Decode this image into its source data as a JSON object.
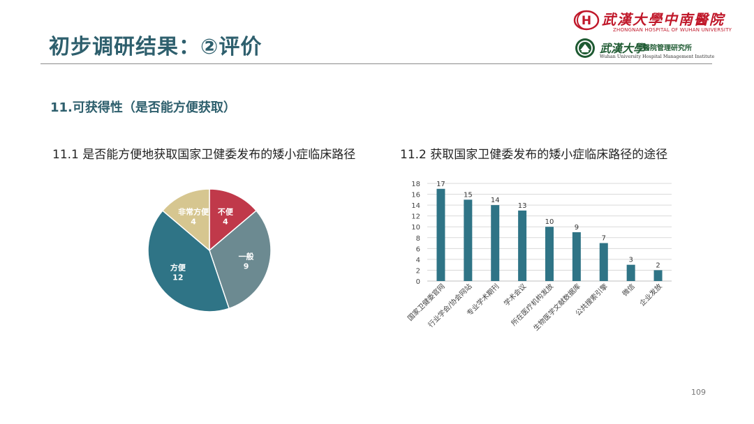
{
  "slide": {
    "title": "初步调研结果：②评价",
    "section_heading": "11.可获得性（是否能方便获取）",
    "sub1_heading": "11.1 是否能方便地获取国家卫健委发布的矮小症临床路径",
    "sub2_heading": "11.2 获取国家卫健委发布的矮小症临床路径的途径",
    "page_number": "109"
  },
  "logos": {
    "hospital_name": "武漢大學中南醫院",
    "hospital_en": "ZHONGNAN HOSPITAL OF WUHAN UNIVERSITY",
    "hospital_mark": "H",
    "institute_name": "武漢大學",
    "institute_sub": "醫院管理研究所",
    "institute_en": "Wuhan University Hospital Management Institute"
  },
  "colors": {
    "title": "#2e5f6d",
    "bar": "#2f7486",
    "pie_red": "#c0394a",
    "pie_gray": "#6c8a91",
    "pie_teal": "#2f7486",
    "pie_tan": "#d6c690",
    "logo_red": "#c0182a",
    "logo_green": "#1e5a32"
  },
  "chart_data": [
    {
      "type": "pie",
      "title": "",
      "slices": [
        {
          "label": "不便",
          "value": 4,
          "color": "#c0394a"
        },
        {
          "label": "一般",
          "value": 9,
          "color": "#6c8a91"
        },
        {
          "label": "方便",
          "value": 12,
          "color": "#2f7486"
        },
        {
          "label": "非常方便",
          "value": 4,
          "color": "#d6c690"
        }
      ]
    },
    {
      "type": "bar",
      "title": "",
      "categories": [
        "国家卫健委官网",
        "行业学会/协会网站",
        "专业学术期刊",
        "学术会议",
        "所在医疗机构发放",
        "生物医学文献数据库",
        "公共搜索引擎",
        "微信",
        "企业发放"
      ],
      "values": [
        17,
        15,
        14,
        13,
        10,
        9,
        7,
        3,
        2
      ],
      "ylim": [
        0,
        18
      ],
      "yticks": [
        0,
        2,
        4,
        6,
        8,
        10,
        12,
        14,
        16,
        18
      ],
      "grid": true,
      "data_labels": true,
      "color": "#2f7486"
    }
  ]
}
